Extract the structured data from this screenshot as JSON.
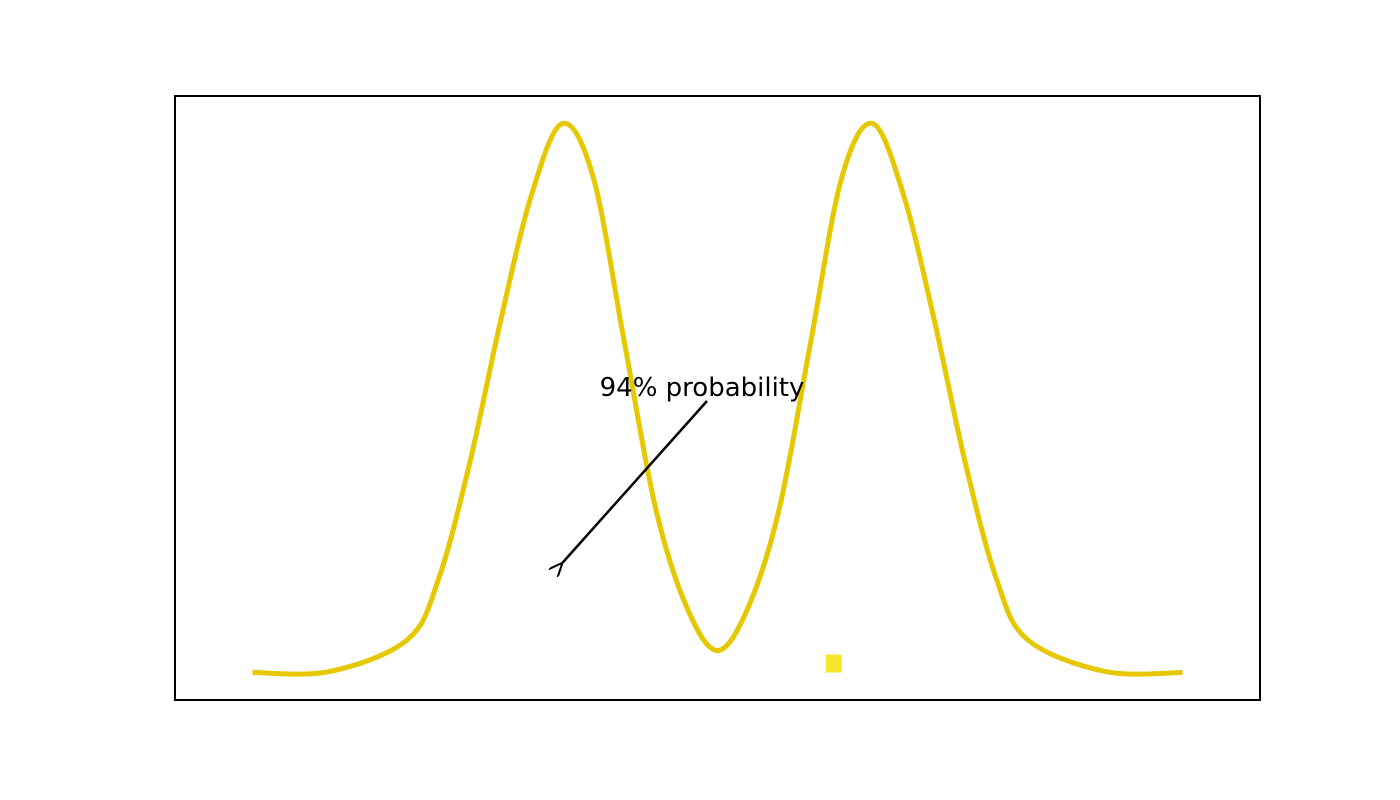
{
  "chart_data": {
    "type": "line",
    "title": "",
    "xlabel": "",
    "ylabel": "",
    "axes_visible": false,
    "grid": false,
    "xlim": [
      -3.5,
      3.5
    ],
    "ylim": [
      -0.05,
      1.05
    ],
    "series": [
      {
        "color": "#e6c800",
        "x": [
          -3.0,
          -2.5,
          -2.0,
          -1.8,
          -1.6,
          -1.4,
          -1.2,
          -1.0,
          -0.8,
          -0.6,
          -0.4,
          -0.2,
          0.0,
          0.2,
          0.4,
          0.6,
          0.8,
          1.0,
          1.2,
          1.4,
          1.6,
          1.8,
          2.0,
          2.5,
          3.0
        ],
        "y": [
          0.0,
          0.002,
          0.06,
          0.17,
          0.38,
          0.64,
          0.87,
          1.0,
          0.9,
          0.6,
          0.3,
          0.12,
          0.04,
          0.12,
          0.3,
          0.6,
          0.9,
          1.0,
          0.87,
          0.64,
          0.38,
          0.17,
          0.06,
          0.002,
          0.0
        ]
      }
    ],
    "annotations": [
      {
        "text": "94% probability",
        "xy": [
          -1.0,
          0.2
        ],
        "xytext": [
          -0.1,
          0.52
        ]
      }
    ],
    "marker": {
      "color": "#f5e62a",
      "x": 0.75,
      "y": 0.0
    },
    "frame_color": "#000000"
  }
}
